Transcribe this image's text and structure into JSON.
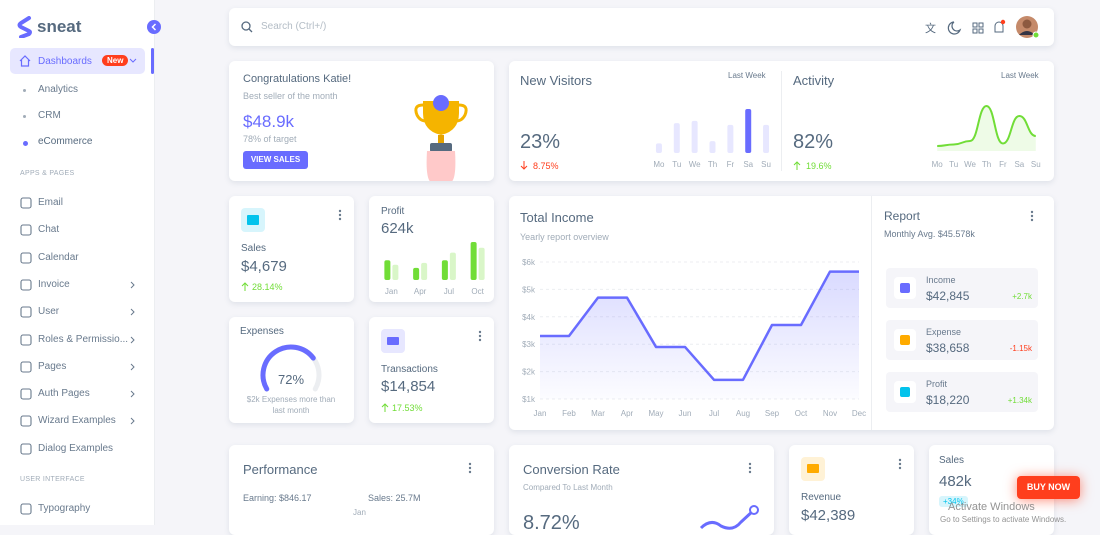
{
  "sidebar": {
    "logo": "sneat",
    "menu": {
      "label": "Dashboards",
      "badge": "New",
      "children": [
        "Analytics",
        "CRM",
        "eCommerce"
      ]
    },
    "sections": [
      {
        "title": "APPS & PAGES",
        "items": [
          "Email",
          "Chat",
          "Calendar",
          "Invoice",
          "User",
          "Roles & Permissio...",
          "Pages",
          "Auth Pages",
          "Wizard Examples",
          "Dialog Examples"
        ]
      },
      {
        "title": "USER INTERFACE",
        "items": [
          "Typography"
        ]
      }
    ]
  },
  "header": {
    "search": "Search (Ctrl+/)"
  },
  "congrats": {
    "title": "Congratulations Katie! ",
    "subtitle": "Best seller of the month",
    "amount": "$48.9k",
    "note": "78% of target",
    "button": "VIEW SALES"
  },
  "visitors": {
    "title": "New Visitors",
    "period": "Last Week",
    "value": "23%",
    "change": "8.75%",
    "chart": {
      "type": "bar",
      "categories": [
        "Mo",
        "Tu",
        "We",
        "Th",
        "Fr",
        "Sa",
        "Su"
      ],
      "values": [
        22,
        68,
        73,
        27,
        64,
        100,
        64
      ],
      "colors": [
        "#e7e7ff",
        "#e7e7ff",
        "#e7e7ff",
        "#e7e7ff",
        "#e7e7ff",
        "#696cff",
        "#e7e7ff"
      ]
    }
  },
  "activity": {
    "title": "Activity",
    "period": "Last Week",
    "value": "82%",
    "change": "19.6%",
    "chart": {
      "type": "line",
      "categories": [
        "Mo",
        "Tu",
        "We",
        "Th",
        "Fr",
        "Sa",
        "Su"
      ],
      "values": [
        5,
        8,
        15,
        85,
        10,
        65,
        25
      ],
      "color": "#71dd37"
    }
  },
  "sales": {
    "title": "Sales",
    "value": "$4,679",
    "change": "28.14%"
  },
  "profit": {
    "title": "Profit",
    "value": "624k",
    "chart": {
      "type": "bar",
      "categories": [
        "Jan",
        "Apr",
        "Jul",
        "Oct"
      ],
      "series": [
        {
          "color": "#71dd37",
          "values": [
            52,
            32,
            52,
            100
          ]
        },
        {
          "color": "#d9f6c8",
          "values": [
            40,
            45,
            72,
            85
          ]
        }
      ]
    }
  },
  "expenses": {
    "title": "Expenses",
    "gauge": {
      "value": 72,
      "label": "72%"
    },
    "caption": "$2k Expenses more than last month",
    "color": "#696cff"
  },
  "transactions": {
    "title": "Transactions",
    "value": "$14,854",
    "change": "17.53%"
  },
  "income": {
    "title": "Total Income",
    "subtitle": "Yearly report overview",
    "chart": {
      "type": "line",
      "categories": [
        "Jan",
        "Feb",
        "Mar",
        "Apr",
        "May",
        "Jun",
        "Jul",
        "Aug",
        "Sep",
        "Oct",
        "Nov",
        "Dec"
      ],
      "values": [
        3300,
        3300,
        4700,
        4700,
        2900,
        2900,
        1700,
        1700,
        3700,
        3700,
        5650,
        5650
      ],
      "color": "#696cff",
      "ylim": [
        1000,
        6000
      ],
      "yticks": [
        {
          "value": 1000,
          "label": "$1k"
        },
        {
          "value": 2000,
          "label": "$2k"
        },
        {
          "value": 3000,
          "label": "$3k"
        },
        {
          "value": 4000,
          "label": "$4k"
        },
        {
          "value": 5000,
          "label": "$5k"
        },
        {
          "value": 6000,
          "label": "$6k"
        }
      ],
      "grid": true
    }
  },
  "report": {
    "title": "Report",
    "subtitle": "Monthly Avg. $45.578k",
    "items": [
      {
        "name": "Income",
        "value": "$42,845",
        "change": "+2.7k"
      },
      {
        "name": "Expense",
        "value": "$38,658",
        "change": "-1.15k"
      },
      {
        "name": "Profit",
        "value": "$18,220",
        "change": "+1.34k"
      }
    ]
  },
  "performance": {
    "title": "Performance",
    "earning": "Earning: $846.17",
    "sales": "Sales: 25.7M",
    "month": "Jan"
  },
  "conversion": {
    "title": "Conversion Rate",
    "subtitle": "Compared To Last Month",
    "value": "8.72%"
  },
  "revenue": {
    "title": "Revenue",
    "value": "$42,389"
  },
  "sales2": {
    "title": "Sales",
    "value": "482k",
    "change": "+34%"
  },
  "buy_now": "BUY NOW",
  "watermark": {
    "title": "Activate Windows",
    "text": "Go to Settings to activate Windows."
  }
}
